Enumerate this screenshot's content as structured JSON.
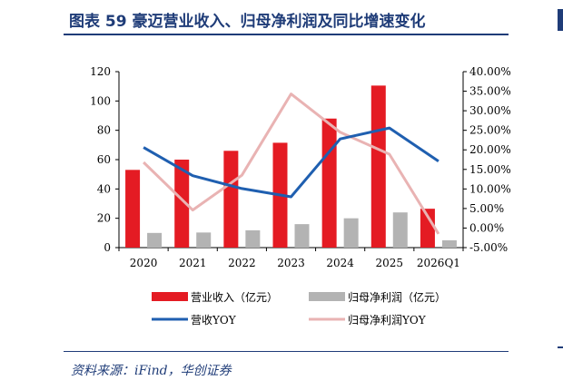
{
  "header": {
    "title": "图表 59   豪迈营业收入、归母净利润及同比增速变化"
  },
  "footer": {
    "source": "资料来源：iFind，华创证券"
  },
  "colors": {
    "revenue": "#e41b23",
    "net_profit": "#b3b3b3",
    "revenue_yoy": "#1f5fb0",
    "net_profit_yoy": "#e9b3b3",
    "title": "#1f3c78"
  },
  "chart_data": {
    "type": "bar",
    "categories": [
      "2020",
      "2021",
      "2022",
      "2023",
      "2024",
      "2025",
      "2026Q1"
    ],
    "series": [
      {
        "name": "营业收入（亿元）",
        "type": "bar",
        "axis": "left",
        "values": [
          53,
          60,
          66,
          71.5,
          88,
          110.5,
          26.5
        ]
      },
      {
        "name": "归母净利润（亿元）",
        "type": "bar",
        "axis": "left",
        "values": [
          10,
          10.3,
          11.8,
          16,
          20,
          24,
          5
        ]
      },
      {
        "name": "营收YOY",
        "type": "line",
        "axis": "right",
        "values": [
          20.6,
          13.4,
          10.1,
          8.0,
          22.8,
          25.6,
          17.1
        ]
      },
      {
        "name": "归母净利润YOY",
        "type": "line",
        "axis": "right",
        "values": [
          16.8,
          4.6,
          13.5,
          34.3,
          24.5,
          18.9,
          -1.5
        ]
      }
    ],
    "y_left": {
      "min": 0,
      "max": 120,
      "ticks": [
        "0",
        "20",
        "40",
        "60",
        "80",
        "100",
        "120"
      ]
    },
    "y_right": {
      "min": -5,
      "max": 40,
      "ticks": [
        "-5.00%",
        "0.00%",
        "5.00%",
        "10.00%",
        "15.00%",
        "20.00%",
        "25.00%",
        "30.00%",
        "35.00%",
        "40.00%"
      ]
    },
    "grid": false,
    "legend_position": "bottom"
  }
}
